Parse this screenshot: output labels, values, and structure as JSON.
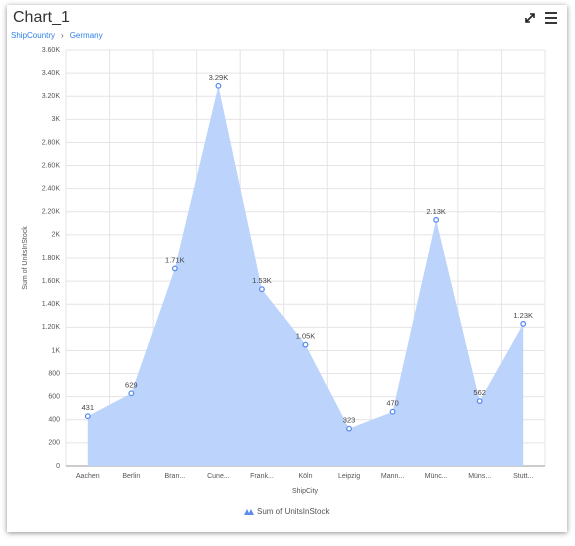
{
  "header": {
    "title": "Chart_1",
    "breadcrumb": [
      "ShipCountry",
      "Germany"
    ]
  },
  "chart_data": {
    "type": "area",
    "y_label": "Sum of UnitsInStock",
    "x_label": "ShipCity",
    "categories": [
      "Aachen",
      "Berlin",
      "Bran...",
      "Cune...",
      "Frank...",
      "Köln",
      "Leipzig",
      "Mann...",
      "Münc...",
      "Müns...",
      "Stutt..."
    ],
    "series": [
      {
        "name": "Sum of UnitsInStock",
        "color": "#bcd3fb",
        "marker_color": "#5b8def",
        "values": [
          431,
          629,
          1710,
          3290,
          1530,
          1050,
          323,
          470,
          2130,
          562,
          1230
        ],
        "value_labels": [
          "431",
          "629",
          "1.71K",
          "3.29K",
          "1.53K",
          "1.05K",
          "323",
          "470",
          "2.13K",
          "562",
          "1.23K"
        ]
      }
    ],
    "ylim": [
      0,
      3600
    ],
    "yticks": [
      0,
      200,
      400,
      600,
      800,
      {
        "value": 1000,
        "label": "1K"
      },
      {
        "value": 1200,
        "label": "1.20K"
      },
      {
        "value": 1400,
        "label": "1.40K"
      },
      {
        "value": 1600,
        "label": "1.60K"
      },
      {
        "value": 1800,
        "label": "1.80K"
      },
      {
        "value": 2000,
        "label": "2K"
      },
      {
        "value": 2200,
        "label": "2.20K"
      },
      {
        "value": 2400,
        "label": "2.40K"
      },
      {
        "value": 2600,
        "label": "2.60K"
      },
      {
        "value": 2800,
        "label": "2.80K"
      },
      {
        "value": 3000,
        "label": "3K"
      },
      {
        "value": 3200,
        "label": "3.20K"
      },
      {
        "value": 3400,
        "label": "3.40K"
      },
      {
        "value": 3600,
        "label": "3.60K"
      }
    ],
    "grid": true
  }
}
